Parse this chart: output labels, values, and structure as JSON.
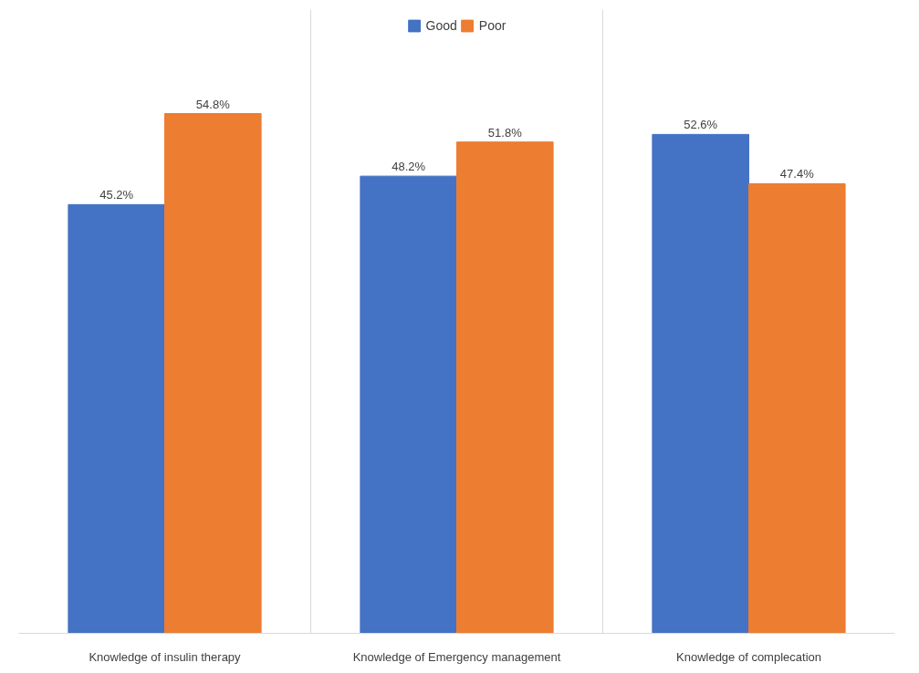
{
  "chart_data": {
    "type": "bar",
    "categories": [
      "Knowledge of insulin therapy",
      "Knowledge of Emergency management",
      "Knowledge of complecation"
    ],
    "series": [
      {
        "name": "Good",
        "color": "#4472c4",
        "values": [
          45.2,
          48.2,
          52.6
        ],
        "value_labels": [
          "45.2%",
          "48.2%",
          "52.6%"
        ]
      },
      {
        "name": "Poor",
        "color": "#ed7d31",
        "values": [
          54.8,
          51.8,
          47.4
        ],
        "value_labels": [
          "54.8%",
          "51.8%",
          "47.4%"
        ]
      }
    ],
    "grid": "x",
    "legend": "top"
  }
}
